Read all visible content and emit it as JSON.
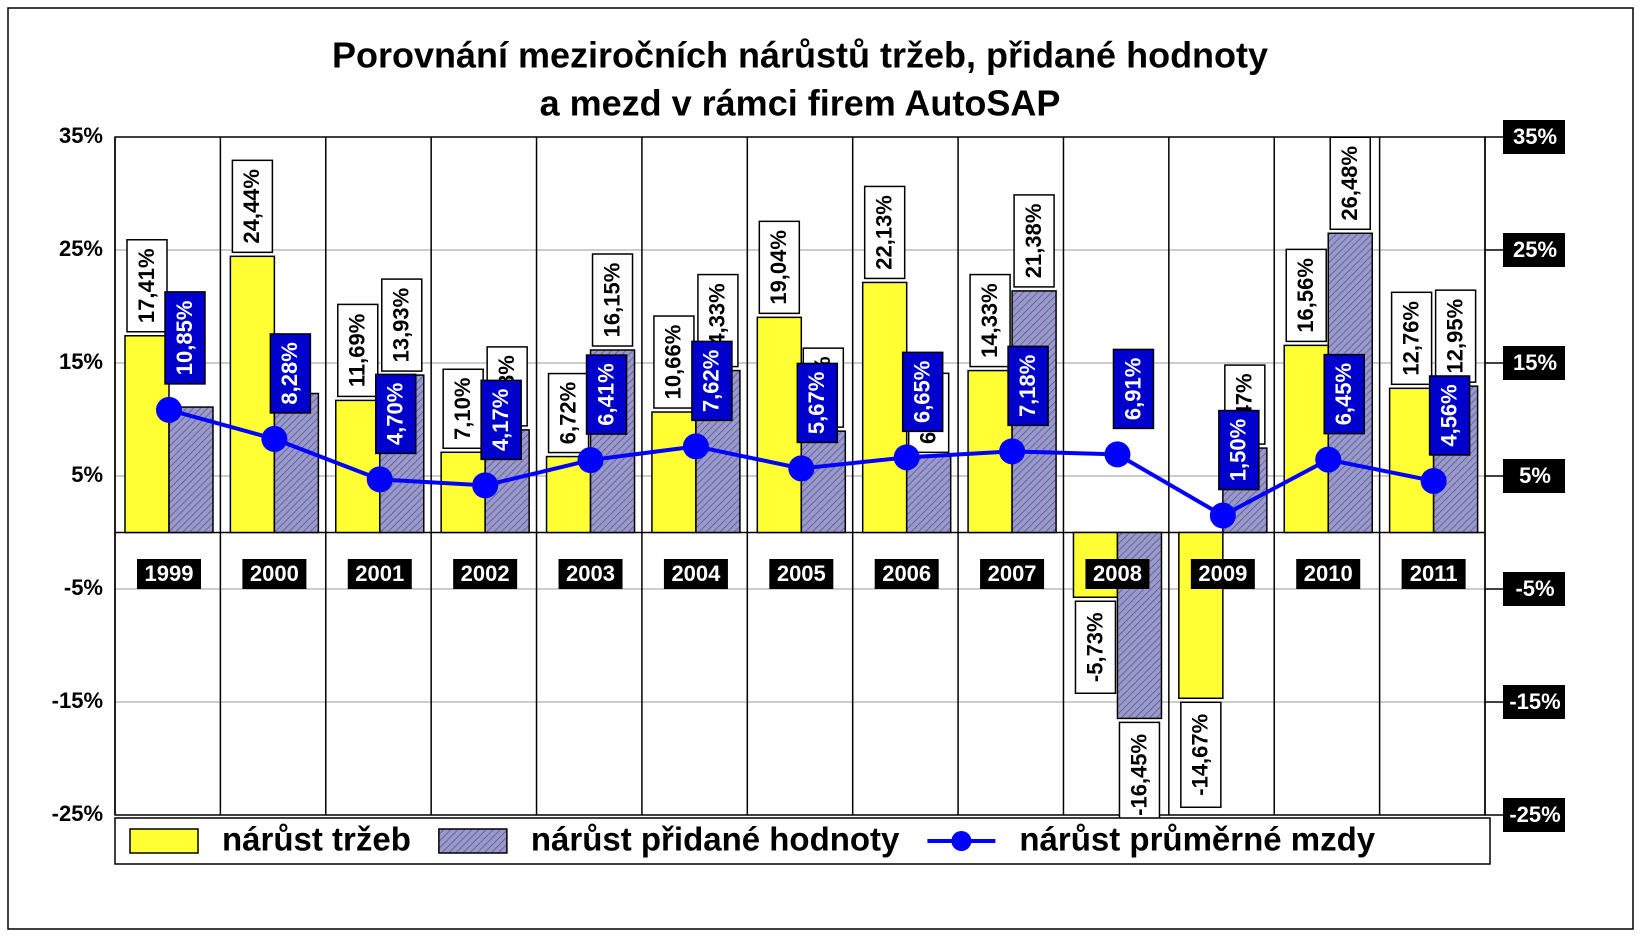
{
  "chart_data": {
    "type": "bar_line",
    "title": [
      "Porovnání meziročních nárůstů tržeb, přidané hodnoty",
      "a mezd v rámci firem AutoSAP"
    ],
    "categories": [
      "1999",
      "2000",
      "2001",
      "2002",
      "2003",
      "2004",
      "2005",
      "2006",
      "2007",
      "2008",
      "2009",
      "2010",
      "2011"
    ],
    "series": [
      {
        "name": "nárůst tržeb",
        "type": "bar",
        "color": "#ffff33",
        "values": [
          17.41,
          24.44,
          11.69,
          7.1,
          6.72,
          10.66,
          19.04,
          22.13,
          14.33,
          -5.73,
          -14.67,
          16.56,
          12.76
        ],
        "value_labels": [
          "17,41%",
          "24,44%",
          "11,69%",
          "7,10%",
          "6,72%",
          "10,66%",
          "19,04%",
          "22,13%",
          "14,33%",
          "-5,73%",
          "-14,67%",
          "16,56%",
          "12,76%"
        ]
      },
      {
        "name": "nárůst přidané hodnoty",
        "type": "bar",
        "color": "#9999cc",
        "values": [
          11.1,
          12.3,
          13.93,
          9.08,
          16.15,
          14.33,
          8.97,
          6.74,
          21.38,
          -16.45,
          7.47,
          26.48,
          12.95
        ],
        "value_labels": [
          null,
          null,
          "13,93%",
          "9,08%",
          "16,15%",
          "14,33%",
          "8,97%",
          "6,74%",
          "21,38%",
          "-16,45%",
          "7,47%",
          "26,48%",
          "12,95%"
        ]
      },
      {
        "name": "nárůst průměrné mzdy",
        "type": "line",
        "color": "#0000ff",
        "values": [
          10.85,
          8.28,
          4.7,
          4.17,
          6.41,
          7.62,
          5.67,
          6.65,
          7.18,
          6.91,
          1.5,
          6.45,
          4.56
        ],
        "value_labels": [
          "10,85%",
          "8,28%",
          "4,70%",
          "4,17%",
          "6,41%",
          "7,62%",
          "5,67%",
          "6,65%",
          "7,18%",
          "6,91%",
          "1,50%",
          "6,45%",
          "4,56%"
        ]
      }
    ],
    "ylim": [
      -25,
      35
    ],
    "yticks": [
      {
        "value": -25,
        "label": "-25%"
      },
      {
        "value": -15,
        "label": "-15%"
      },
      {
        "value": -5,
        "label": "-5%"
      },
      {
        "value": 5,
        "label": "5%"
      },
      {
        "value": 15,
        "label": "15%"
      },
      {
        "value": 25,
        "label": "25%"
      },
      {
        "value": 35,
        "label": "35%"
      }
    ],
    "y2lim": [
      -25,
      35
    ],
    "y2ticks": [
      {
        "value": -25,
        "label": "-25%"
      },
      {
        "value": -15,
        "label": "-15%"
      },
      {
        "value": -5,
        "label": "-5%"
      },
      {
        "value": 5,
        "label": "5%"
      },
      {
        "value": 15,
        "label": "15%"
      },
      {
        "value": 25,
        "label": "25%"
      },
      {
        "value": 35,
        "label": "35%"
      }
    ],
    "grid": true,
    "legend": "bottom"
  }
}
